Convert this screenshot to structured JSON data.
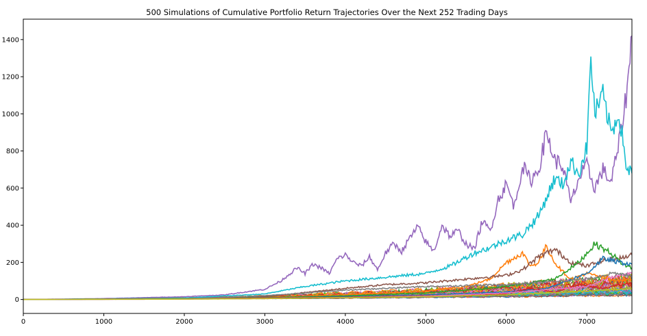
{
  "chart_data": {
    "type": "line",
    "title": "500 Simulations of Cumulative Portfolio Return Trajectories Over the Next 252 Trading Days",
    "xlabel": "",
    "ylabel": "",
    "xlim": [
      0,
      7560
    ],
    "ylim": [
      -75,
      1510
    ],
    "xticks": [
      0,
      1000,
      2000,
      3000,
      4000,
      5000,
      6000,
      7000
    ],
    "yticks": [
      0,
      200,
      400,
      600,
      800,
      1000,
      1200,
      1400
    ],
    "grid": false,
    "legend": "none",
    "series_count": 500,
    "series": [
      {
        "color": "#9467bd",
        "x": [
          0,
          1000,
          2000,
          2500,
          3000,
          3200,
          3400,
          3500,
          3600,
          3700,
          3800,
          3900,
          4000,
          4100,
          4200,
          4300,
          4400,
          4500,
          4600,
          4700,
          4800,
          4900,
          5000,
          5100,
          5200,
          5300,
          5400,
          5500,
          5600,
          5700,
          5800,
          5900,
          6000,
          6100,
          6200,
          6300,
          6400,
          6500,
          6600,
          6700,
          6800,
          6900,
          7000,
          7100,
          7200,
          7300,
          7400,
          7500,
          7560
        ],
        "y": [
          0,
          5,
          15,
          25,
          55,
          100,
          170,
          140,
          190,
          170,
          140,
          220,
          240,
          200,
          180,
          230,
          160,
          250,
          300,
          260,
          330,
          390,
          310,
          260,
          400,
          340,
          370,
          300,
          270,
          420,
          370,
          540,
          620,
          500,
          720,
          640,
          700,
          900,
          750,
          720,
          520,
          650,
          720,
          600,
          700,
          630,
          840,
          1130,
          1420
        ]
      },
      {
        "color": "#17becf",
        "x": [
          0,
          1000,
          2000,
          3000,
          3500,
          4000,
          4500,
          5000,
          5300,
          5600,
          5800,
          6000,
          6200,
          6400,
          6600,
          6700,
          6800,
          6900,
          7000,
          7050,
          7100,
          7200,
          7300,
          7400,
          7500,
          7560
        ],
        "y": [
          0,
          3,
          8,
          30,
          70,
          100,
          120,
          140,
          180,
          250,
          280,
          320,
          350,
          450,
          650,
          620,
          740,
          680,
          820,
          1300,
          1000,
          1100,
          900,
          1000,
          700,
          680
        ]
      },
      {
        "color": "#ff7f0e",
        "x": [
          0,
          2000,
          3000,
          4000,
          5000,
          5500,
          5800,
          6000,
          6200,
          6300,
          6400,
          6500,
          6600,
          6700,
          6800,
          7000,
          7200,
          7400,
          7560
        ],
        "y": [
          0,
          4,
          12,
          25,
          45,
          70,
          110,
          200,
          250,
          180,
          200,
          290,
          200,
          150,
          110,
          140,
          120,
          100,
          110
        ]
      },
      {
        "color": "#8c564b",
        "x": [
          0,
          2000,
          3000,
          4000,
          4500,
          5000,
          5500,
          6000,
          6200,
          6400,
          6600,
          6800,
          7000,
          7200,
          7400,
          7560
        ],
        "y": [
          0,
          5,
          15,
          60,
          80,
          90,
          110,
          130,
          160,
          230,
          270,
          200,
          180,
          210,
          220,
          240
        ]
      },
      {
        "color": "#2ca02c",
        "x": [
          0,
          2000,
          3000,
          4000,
          5000,
          5500,
          6000,
          6300,
          6600,
          6900,
          7100,
          7300,
          7450,
          7560
        ],
        "y": [
          0,
          5,
          10,
          20,
          35,
          50,
          70,
          90,
          110,
          200,
          300,
          250,
          190,
          170
        ]
      },
      {
        "color": "#1f77b4",
        "x": [
          0,
          2000,
          3000,
          4000,
          5000,
          6000,
          6500,
          7000,
          7200,
          7400,
          7560
        ],
        "y": [
          0,
          3,
          8,
          15,
          25,
          40,
          60,
          140,
          220,
          200,
          190
        ]
      },
      {
        "color": "#d62728",
        "x": [
          0,
          2000,
          3000,
          4000,
          5000,
          6000,
          6300,
          6600,
          6900,
          7200,
          7560
        ],
        "y": [
          0,
          3,
          8,
          12,
          20,
          30,
          60,
          40,
          80,
          60,
          90
        ]
      },
      {
        "color": "#e377c2",
        "x": [
          0,
          2000,
          3000,
          4000,
          5000,
          6000,
          7000,
          7300,
          7560
        ],
        "y": [
          0,
          2,
          6,
          10,
          18,
          35,
          70,
          120,
          140
        ]
      },
      {
        "color": "#7f7f7f",
        "x": [
          0,
          2000,
          3000,
          4000,
          5000,
          6000,
          7000,
          7300,
          7560
        ],
        "y": [
          0,
          4,
          20,
          50,
          70,
          80,
          110,
          140,
          130
        ]
      },
      {
        "color": "#bcbd22",
        "x": [
          0,
          2000,
          3000,
          4000,
          5000,
          6000,
          7000,
          7560
        ],
        "y": [
          0,
          2,
          5,
          10,
          15,
          25,
          45,
          60
        ]
      }
    ]
  }
}
